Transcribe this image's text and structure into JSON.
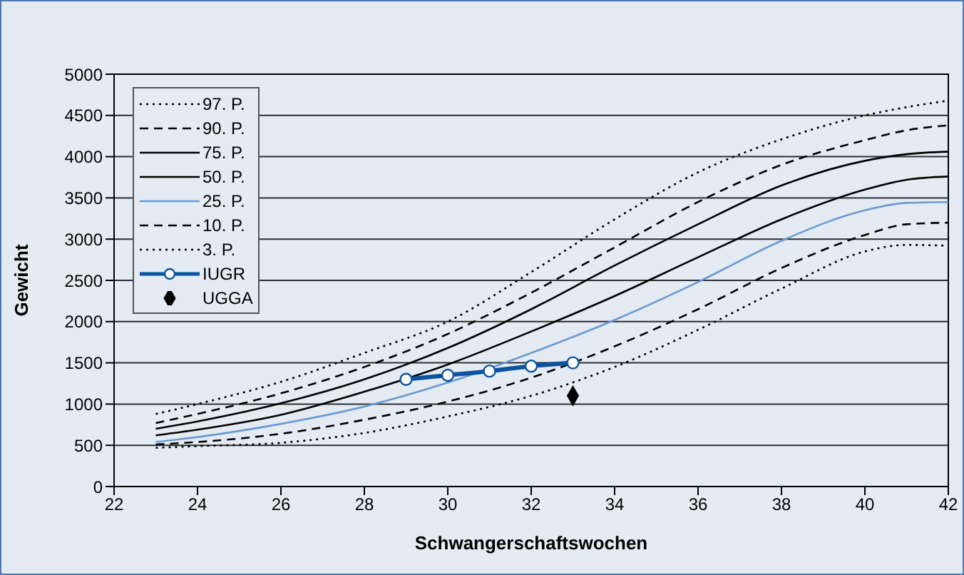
{
  "chart_data": {
    "type": "line",
    "xlabel": "Schwangerschaftswochen",
    "ylabel": "Gewicht",
    "xlim": [
      22,
      42
    ],
    "xticks": [
      22,
      24,
      26,
      28,
      30,
      32,
      34,
      36,
      38,
      40,
      42
    ],
    "ylim": [
      0,
      5000
    ],
    "yticks": [
      0,
      500,
      1000,
      1500,
      2000,
      2500,
      3000,
      3500,
      4000,
      4500,
      5000
    ],
    "grid": "y",
    "legend": "top left",
    "marker": "none",
    "x": [
      23,
      24,
      26,
      28,
      30,
      32,
      34,
      36,
      38,
      40,
      41,
      42
    ],
    "series": [
      {
        "name": "97. P.",
        "color": "#000000",
        "line_style": "dotted",
        "values": [
          880,
          1000,
          1270,
          1620,
          2000,
          2600,
          3240,
          3810,
          4210,
          4500,
          4600,
          4680
        ]
      },
      {
        "name": "90. P.",
        "color": "#000000",
        "line_style": "dashed",
        "values": [
          770,
          880,
          1130,
          1450,
          1850,
          2350,
          2900,
          3450,
          3900,
          4200,
          4320,
          4380
        ]
      },
      {
        "name": "75. P.",
        "color": "#000000",
        "line_style": "solid",
        "values": [
          700,
          790,
          1010,
          1300,
          1680,
          2150,
          2680,
          3180,
          3650,
          3950,
          4030,
          4060
        ]
      },
      {
        "name": "50. P.",
        "color": "#000000",
        "line_style": "solid",
        "values": [
          620,
          690,
          870,
          1150,
          1480,
          1880,
          2310,
          2780,
          3240,
          3600,
          3720,
          3760
        ]
      },
      {
        "name": "25. P.",
        "color": "#6a9bd1",
        "line_style": "solid",
        "values": [
          540,
          600,
          760,
          970,
          1260,
          1620,
          2020,
          2480,
          2980,
          3350,
          3440,
          3450
        ]
      },
      {
        "name": "10. P.",
        "color": "#000000",
        "line_style": "dashed",
        "values": [
          510,
          540,
          640,
          810,
          1030,
          1320,
          1700,
          2150,
          2650,
          3050,
          3180,
          3200
        ]
      },
      {
        "name": "3. P.",
        "color": "#000000",
        "line_style": "dotted",
        "values": [
          470,
          490,
          530,
          650,
          850,
          1100,
          1450,
          1900,
          2400,
          2850,
          2930,
          2920
        ]
      },
      {
        "name": "IUGR",
        "color": "#0b539f",
        "marker": "circle",
        "line_style": "solid",
        "x": [
          29,
          30,
          31,
          32,
          33
        ],
        "values": [
          1300,
          1350,
          1400,
          1460,
          1500
        ]
      },
      {
        "name": "UGGA",
        "type": "scatter",
        "color": "#000000",
        "marker": "diamond",
        "x": [
          33
        ],
        "values": [
          1100
        ]
      }
    ]
  }
}
